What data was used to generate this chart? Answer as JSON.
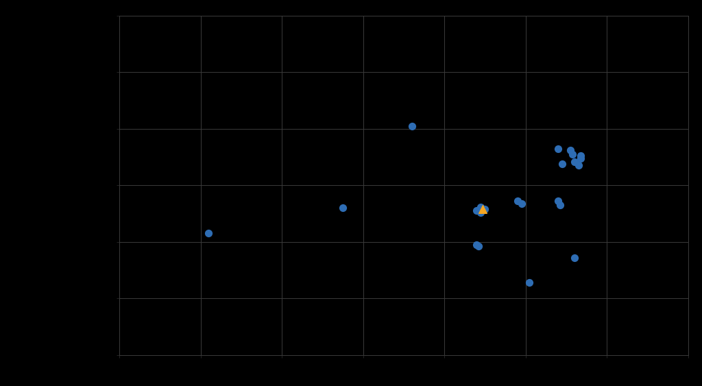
{
  "background_color": "#000000",
  "plot_bg_color": "#000000",
  "grid_color": "#3a3a3a",
  "grid_linewidth": 0.7,
  "blue_dots": [
    [
      -3.8,
      0.15
    ],
    [
      1.2,
      2.05
    ],
    [
      -0.5,
      0.6
    ],
    [
      4.8,
      1.65
    ],
    [
      4.9,
      1.38
    ],
    [
      5.15,
      1.55
    ],
    [
      5.2,
      1.42
    ],
    [
      5.3,
      1.35
    ],
    [
      5.1,
      1.62
    ],
    [
      5.35,
      1.52
    ],
    [
      5.35,
      1.48
    ],
    [
      3.8,
      0.72
    ],
    [
      3.9,
      0.68
    ],
    [
      2.9,
      0.62
    ],
    [
      3.0,
      0.58
    ],
    [
      4.8,
      0.72
    ],
    [
      4.85,
      0.65
    ],
    [
      2.8,
      0.55
    ],
    [
      2.9,
      0.52
    ],
    [
      5.2,
      -0.28
    ],
    [
      4.1,
      -0.72
    ],
    [
      2.8,
      -0.05
    ],
    [
      2.85,
      -0.08
    ]
  ],
  "triangle_point": [
    2.95,
    0.58
  ],
  "dot_color": "#2e6db4",
  "triangle_color": "#f5a623",
  "dot_size": 50,
  "triangle_size": 70,
  "xlim": [
    -6,
    8
  ],
  "ylim": [
    -2,
    4
  ],
  "xticks": [
    -6,
    -4,
    -2,
    0,
    2,
    4,
    6,
    8
  ],
  "yticks": [
    -2,
    -1,
    0,
    1,
    2,
    3,
    4
  ],
  "figsize": [
    10.24,
    5.63
  ],
  "dpi": 100
}
